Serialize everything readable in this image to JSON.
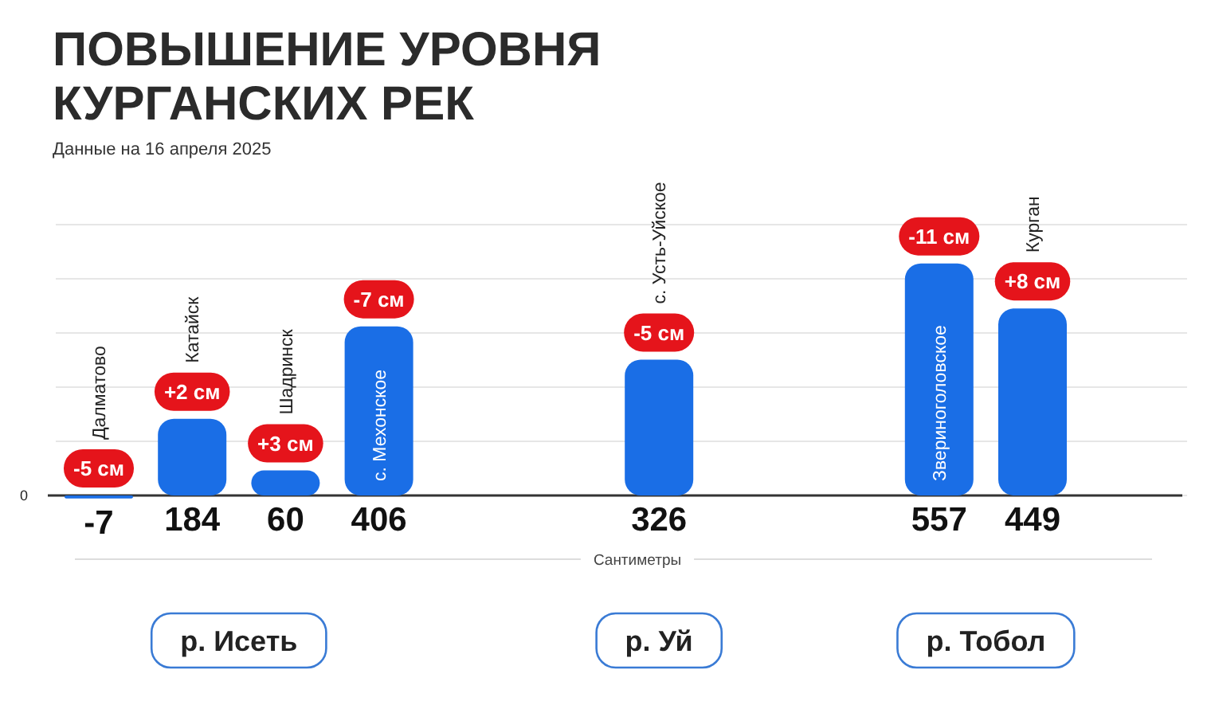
{
  "chart_data": {
    "type": "bar",
    "title": "ПОВЫШЕНИЕ УРОВНЯ КУРГАНСКИХ РЕК",
    "subtitle": "Данные на 16 апреля 2025",
    "xlabel": "Сантиметры",
    "categories": [
      "Далматово",
      "Катайск",
      "Шадринск",
      "с. Мехонское",
      null,
      null,
      "с. Усть-Уйское",
      null,
      null,
      "Звериноголовское",
      "Курган"
    ],
    "values": [
      -7,
      184,
      60,
      406,
      null,
      null,
      326,
      null,
      null,
      557,
      449
    ],
    "color": "#1a6ee6",
    "yticks": [
      {
        "value": 0,
        "label": null
      },
      {
        "value": 130,
        "label": null
      },
      {
        "value": 260,
        "label": null
      },
      {
        "value": 390,
        "label": null
      },
      {
        "value": 520,
        "label": null
      },
      {
        "value": 650,
        "label": null
      }
    ],
    "grid": "y",
    "data_labels": true,
    "annotations": [
      {
        "text": "-5 см",
        "x": "Далматово",
        "y": 0
      },
      {
        "text": "+2 см",
        "x": "Катайск",
        "y": 184
      },
      {
        "text": "+3 см",
        "x": "Шадринск",
        "y": 60
      },
      {
        "text": "-7 см",
        "x": "с. Мехонское",
        "y": 406
      },
      {
        "text": "-5 см",
        "x": "с. Усть-Уйское",
        "y": 326
      },
      {
        "text": "-11 см",
        "x": "Звериноголовское",
        "y": 557
      },
      {
        "text": "+8 см",
        "x": "Курган",
        "y": 449
      },
      "р. Исеть",
      "р. Уй",
      "р. Тобол",
      "0"
    ]
  }
}
